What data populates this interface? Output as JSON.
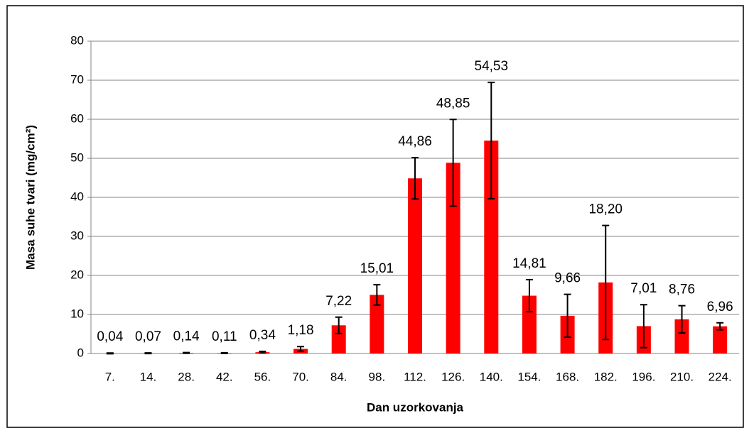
{
  "chart_data": {
    "type": "bar",
    "x_label": "Dan uzorkovanja",
    "y_label": "Masa suhe tvari (mg/cm²)",
    "categories": [
      "7.",
      "14.",
      "28.",
      "42.",
      "56.",
      "70.",
      "84.",
      "98.",
      "112.",
      "126.",
      "140.",
      "154.",
      "168.",
      "182.",
      "196.",
      "210.",
      "224."
    ],
    "values": [
      0.04,
      0.07,
      0.14,
      0.11,
      0.34,
      1.18,
      7.22,
      15.01,
      44.86,
      48.85,
      54.53,
      14.81,
      9.66,
      18.2,
      7.01,
      8.76,
      6.96
    ],
    "value_labels": [
      "0,04",
      "0,07",
      "0,14",
      "0,11",
      "0,34",
      "1,18",
      "7,22",
      "15,01",
      "44,86",
      "48,85",
      "54,53",
      "14,81",
      "9,66",
      "18,20",
      "7,01",
      "8,76",
      "6,96"
    ],
    "errors": [
      0.1,
      0.1,
      0.1,
      0.1,
      0.2,
      0.6,
      2.1,
      2.6,
      5.3,
      11.1,
      14.9,
      4.1,
      5.5,
      14.6,
      5.5,
      3.5,
      0.9
    ],
    "color": "#ff0000",
    "ylim": [
      0,
      80
    ],
    "yticks": [
      0,
      10,
      20,
      30,
      40,
      50,
      60,
      70,
      80
    ],
    "grid": true
  }
}
